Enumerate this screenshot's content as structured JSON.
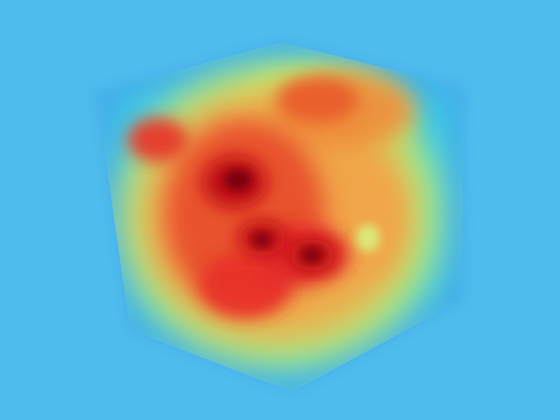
{
  "scene": {
    "kind": "volume-rendering",
    "background_color": "#4EBCEC",
    "colormap": [
      "#3FA0E6",
      "#39D7E8",
      "#C8F06A",
      "#F2A44A",
      "#E8492A",
      "#C00A12",
      "#7A0008"
    ],
    "object_shape": "cube-icon"
  }
}
